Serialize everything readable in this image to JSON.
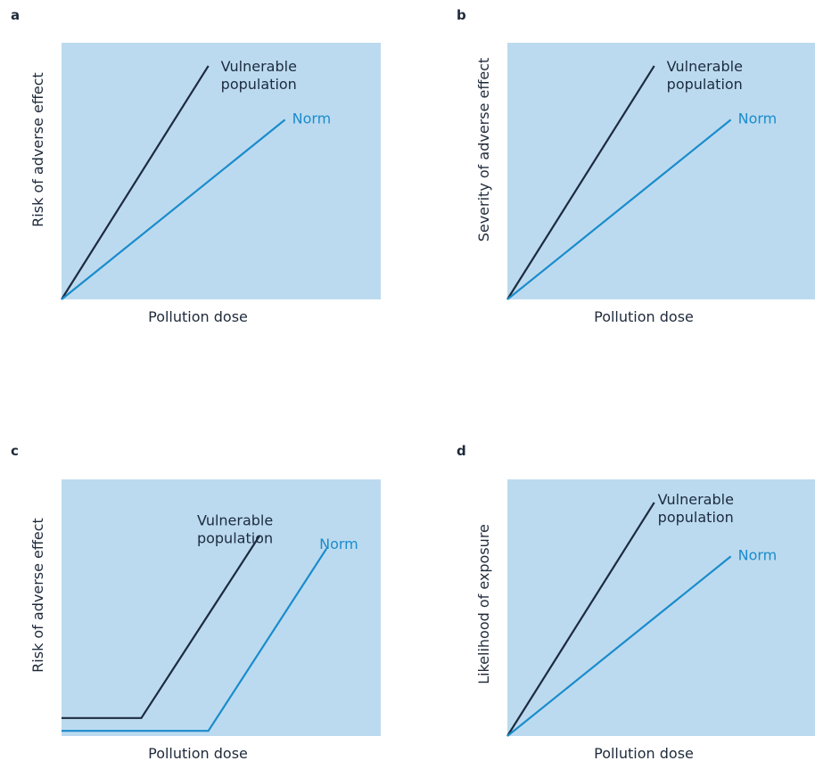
{
  "colors": {
    "plot_background": "#bcdaef",
    "vulnerable": "#1c2b3f",
    "norm": "#1a8ccc",
    "text": "#1f2a3a"
  },
  "chart_data": [
    {
      "panel": "a",
      "type": "line",
      "xlabel": "Pollution dose",
      "ylabel": "Risk of adverse effect",
      "xlim": [
        0,
        1
      ],
      "ylim": [
        0,
        1
      ],
      "grid": false,
      "series": [
        {
          "name": "Vulnerable population",
          "x": [
            0,
            0.46
          ],
          "y": [
            0,
            0.91
          ]
        },
        {
          "name": "Norm",
          "x": [
            0,
            0.7
          ],
          "y": [
            0,
            0.7
          ]
        }
      ]
    },
    {
      "panel": "b",
      "type": "line",
      "xlabel": "Pollution dose",
      "ylabel": "Severity of adverse effect",
      "xlim": [
        0,
        1
      ],
      "ylim": [
        0,
        1
      ],
      "grid": false,
      "series": [
        {
          "name": "Vulnerable population",
          "x": [
            0,
            0.46
          ],
          "y": [
            0,
            0.91
          ]
        },
        {
          "name": "Norm",
          "x": [
            0,
            0.7
          ],
          "y": [
            0,
            0.7
          ]
        }
      ]
    },
    {
      "panel": "c",
      "type": "line",
      "xlabel": "Pollution dose",
      "ylabel": "Risk of adverse effect",
      "xlim": [
        0,
        1
      ],
      "ylim": [
        0,
        1
      ],
      "grid": false,
      "series": [
        {
          "name": "Vulnerable population",
          "x": [
            0,
            0.25,
            0.62
          ],
          "y": [
            0.07,
            0.07,
            0.78
          ]
        },
        {
          "name": "Norm",
          "x": [
            0,
            0.46,
            0.83
          ],
          "y": [
            0.02,
            0.02,
            0.73
          ]
        }
      ]
    },
    {
      "panel": "d",
      "type": "line",
      "xlabel": "Pollution dose",
      "ylabel": "Likelihood of exposure",
      "xlim": [
        0,
        1
      ],
      "ylim": [
        0,
        1
      ],
      "grid": false,
      "series": [
        {
          "name": "Vulnerable population",
          "x": [
            0,
            0.46
          ],
          "y": [
            0,
            0.91
          ]
        },
        {
          "name": "Norm",
          "x": [
            0,
            0.7
          ],
          "y": [
            0,
            0.7
          ]
        }
      ]
    }
  ]
}
